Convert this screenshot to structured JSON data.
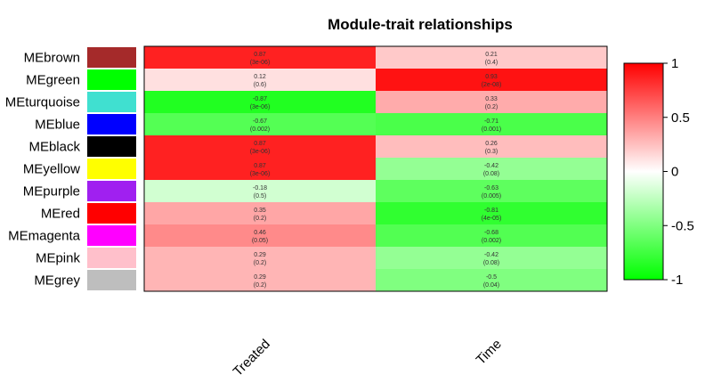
{
  "chart_data": {
    "type": "heatmap",
    "title": "Module-trait relationships",
    "columns": [
      "Treated",
      "Time"
    ],
    "rows": [
      {
        "label": "MEbrown",
        "color": "#a52a2a",
        "cells": [
          {
            "value": 0.87,
            "corr": "0.87",
            "p": "(3e-06)"
          },
          {
            "value": 0.21,
            "corr": "0.21",
            "p": "(0.4)"
          }
        ]
      },
      {
        "label": "MEgreen",
        "color": "#00ff00",
        "cells": [
          {
            "value": 0.12,
            "corr": "0.12",
            "p": "(0.6)"
          },
          {
            "value": 0.93,
            "corr": "0.93",
            "p": "(2e-08)"
          }
        ]
      },
      {
        "label": "MEturquoise",
        "color": "#40e0d0",
        "cells": [
          {
            "value": -0.87,
            "corr": "-0.87",
            "p": "(3e-06)"
          },
          {
            "value": 0.33,
            "corr": "0.33",
            "p": "(0.2)"
          }
        ]
      },
      {
        "label": "MEblue",
        "color": "#0000ff",
        "cells": [
          {
            "value": -0.67,
            "corr": "-0.67",
            "p": "(0.002)"
          },
          {
            "value": -0.71,
            "corr": "-0.71",
            "p": "(0.001)"
          }
        ]
      },
      {
        "label": "MEblack",
        "color": "#000000",
        "cells": [
          {
            "value": 0.87,
            "corr": "0.87",
            "p": "(3e-06)"
          },
          {
            "value": 0.26,
            "corr": "0.26",
            "p": "(0.3)"
          }
        ]
      },
      {
        "label": "MEyellow",
        "color": "#ffff00",
        "cells": [
          {
            "value": 0.87,
            "corr": "0.87",
            "p": "(3e-06)"
          },
          {
            "value": -0.42,
            "corr": "-0.42",
            "p": "(0.08)"
          }
        ]
      },
      {
        "label": "MEpurple",
        "color": "#a020f0",
        "cells": [
          {
            "value": -0.18,
            "corr": "-0.18",
            "p": "(0.5)"
          },
          {
            "value": -0.63,
            "corr": "-0.63",
            "p": "(0.005)"
          }
        ]
      },
      {
        "label": "MEred",
        "color": "#ff0000",
        "cells": [
          {
            "value": 0.35,
            "corr": "0.35",
            "p": "(0.2)"
          },
          {
            "value": -0.81,
            "corr": "-0.81",
            "p": "(4e-05)"
          }
        ]
      },
      {
        "label": "MEmagenta",
        "color": "#ff00ff",
        "cells": [
          {
            "value": 0.46,
            "corr": "0.46",
            "p": "(0.05)"
          },
          {
            "value": -0.68,
            "corr": "-0.68",
            "p": "(0.002)"
          }
        ]
      },
      {
        "label": "MEpink",
        "color": "#ffc0cb",
        "cells": [
          {
            "value": 0.29,
            "corr": "0.29",
            "p": "(0.2)"
          },
          {
            "value": -0.42,
            "corr": "-0.42",
            "p": "(0.08)"
          }
        ]
      },
      {
        "label": "MEgrey",
        "color": "#bebebe",
        "cells": [
          {
            "value": 0.29,
            "corr": "0.29",
            "p": "(0.2)"
          },
          {
            "value": -0.5,
            "corr": "-0.5",
            "p": "(0.04)"
          }
        ]
      }
    ],
    "color_scale": {
      "min": -1,
      "max": 1,
      "low_color": "#00ff00",
      "mid_color": "#ffffff",
      "high_color": "#ff0000",
      "ticks": [
        {
          "value": 1,
          "label": "1"
        },
        {
          "value": 0.5,
          "label": "0.5"
        },
        {
          "value": 0,
          "label": "0"
        },
        {
          "value": -0.5,
          "label": "-0.5"
        },
        {
          "value": -1,
          "label": "-1"
        }
      ]
    },
    "legend": "right"
  }
}
